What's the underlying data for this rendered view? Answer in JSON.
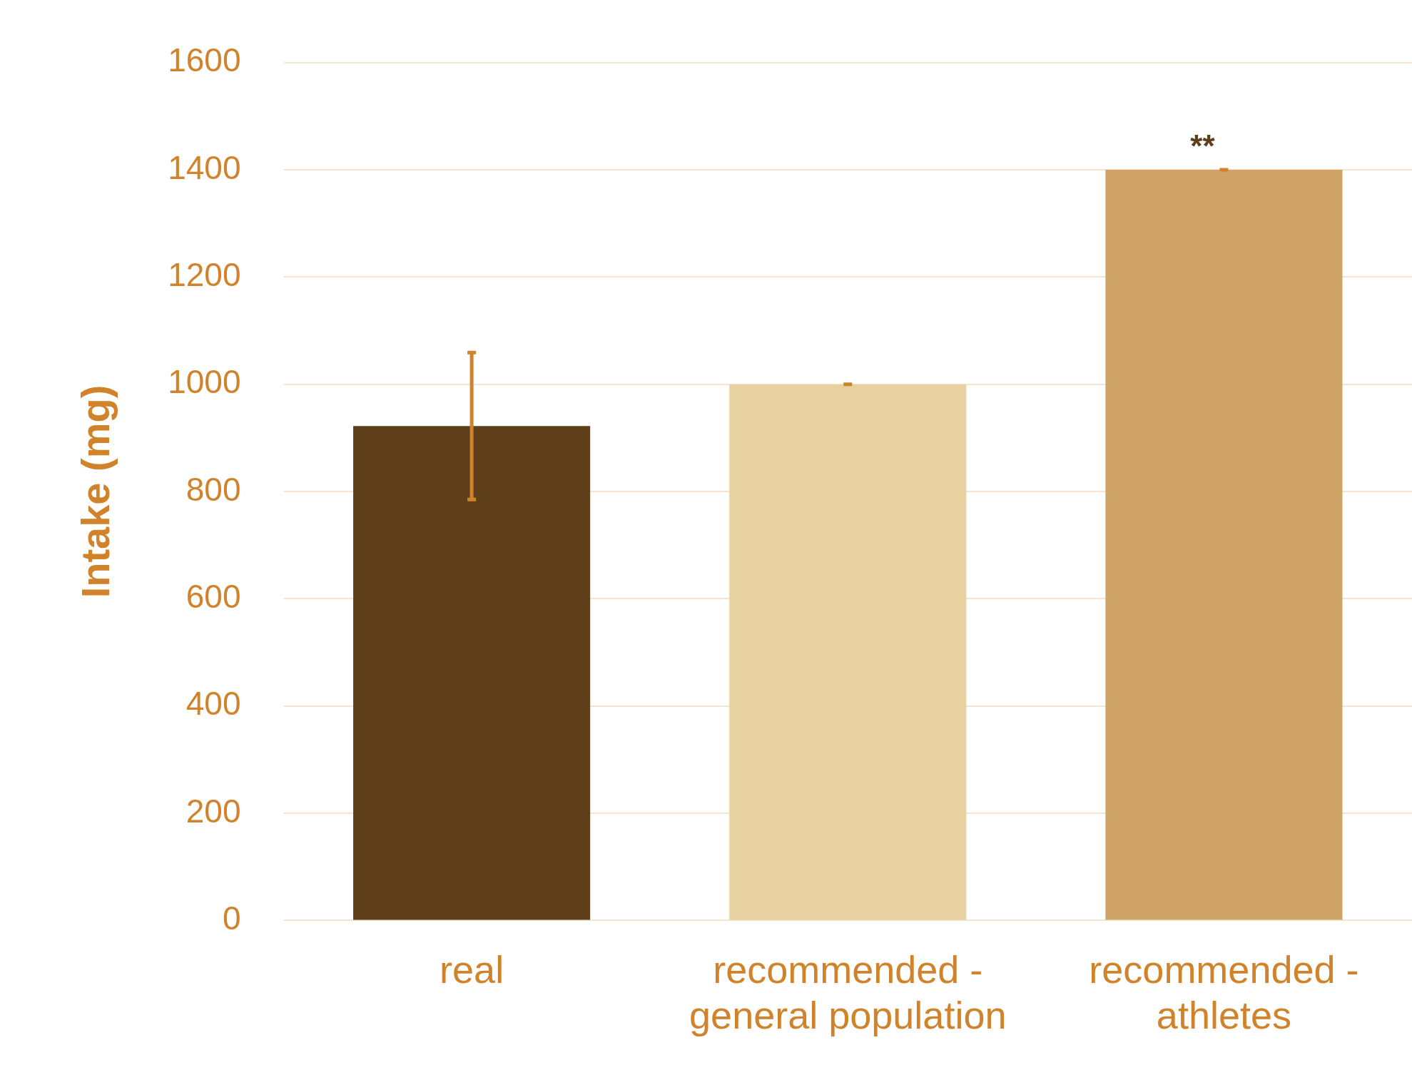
{
  "chart_data": {
    "type": "bar",
    "ylabel": "Intake (mg)",
    "categories": [
      "real",
      "recommended - general population",
      "recommended - athletes"
    ],
    "values": [
      922,
      1000,
      1400
    ],
    "colors": [
      "#5f3f1a",
      "#e8d1a0",
      "#cfa466"
    ],
    "errors": [
      137,
      0,
      0
    ],
    "ylim": [
      0,
      1600
    ],
    "yticks": [
      0,
      200,
      400,
      600,
      800,
      1000,
      1200,
      1400,
      1600
    ],
    "grid": "y",
    "annotations": [
      {
        "text": "**",
        "x": "recommended - athletes",
        "y": 1400
      }
    ]
  }
}
